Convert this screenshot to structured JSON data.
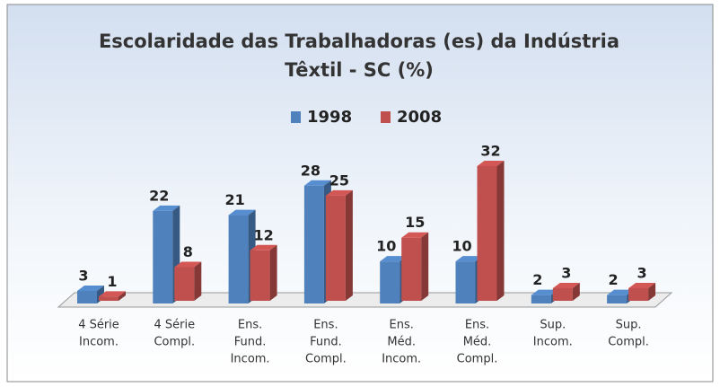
{
  "chart_data": {
    "type": "bar3d",
    "title": [
      "Escolaridade das Trabalhadoras (es) da Indústria",
      "Têxtil - SC (%)"
    ],
    "categories": [
      [
        "4 Série",
        "Incom."
      ],
      [
        "4 Série",
        "Compl."
      ],
      [
        "Ens.",
        "Fund.",
        "Incom."
      ],
      [
        "Ens.",
        "Fund.",
        "Compl."
      ],
      [
        "Ens.",
        "Méd.",
        "Incom."
      ],
      [
        "Ens.",
        "Méd.",
        "Compl."
      ],
      [
        "Sup.",
        "Incom."
      ],
      [
        "Sup.",
        "Compl."
      ]
    ],
    "series": [
      {
        "name": "1998",
        "color": "#4f81bd",
        "values": [
          3,
          22,
          21,
          28,
          10,
          10,
          2,
          2
        ]
      },
      {
        "name": "2008",
        "color": "#c0504d",
        "values": [
          1,
          8,
          12,
          25,
          15,
          32,
          3,
          3
        ]
      }
    ],
    "legend": "top"
  }
}
